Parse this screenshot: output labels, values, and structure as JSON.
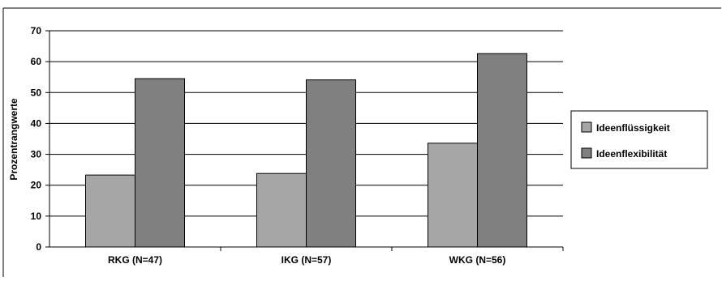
{
  "chart_data": {
    "type": "bar",
    "categories": [
      "RKG (N=47)",
      "IKG (N=57)",
      "WKG (N=56)"
    ],
    "series": [
      {
        "name": "Ideenflüssigkeit",
        "values": [
          23.3,
          23.8,
          33.6
        ],
        "color": "#a6a6a6"
      },
      {
        "name": "Ideenflexibilität",
        "values": [
          54.5,
          54.1,
          62.6
        ],
        "color": "#808080"
      }
    ],
    "xlabel": "",
    "ylabel": "Prozentrangwerte",
    "ylim": [
      0,
      70
    ],
    "yticks": [
      0,
      10,
      20,
      30,
      40,
      50,
      60,
      70
    ],
    "grid": true,
    "legend_position": "right"
  }
}
